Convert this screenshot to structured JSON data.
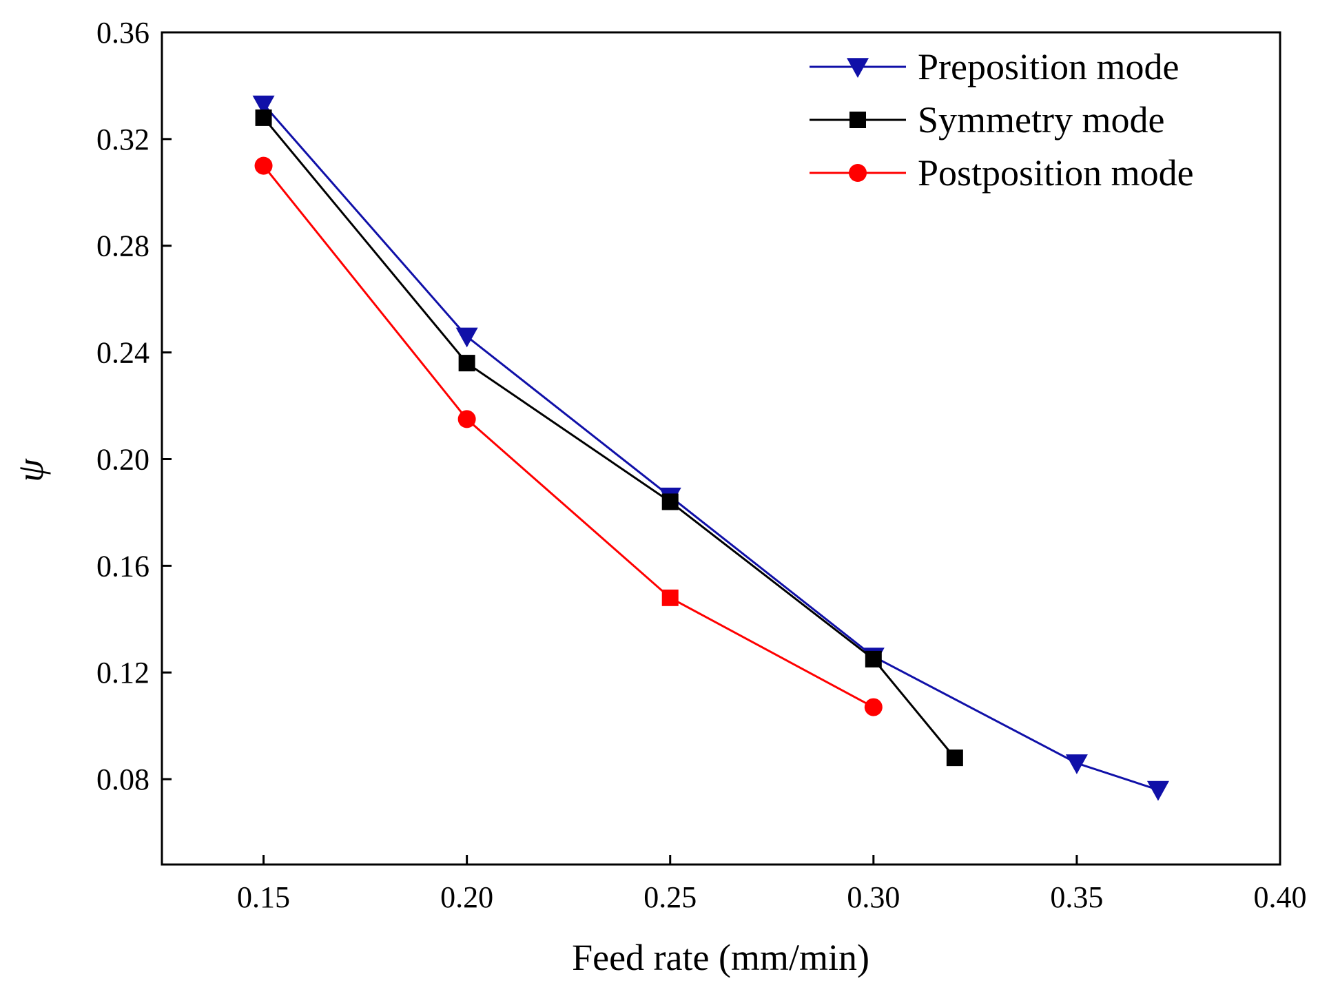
{
  "chart_data": {
    "type": "line",
    "title": "",
    "xlabel": "Feed rate (mm/min)",
    "ylabel": "ψ",
    "xlim": [
      0.125,
      0.4
    ],
    "ylim": [
      0.048,
      0.36
    ],
    "xticks": [
      "0.15",
      "0.20",
      "0.25",
      "0.30",
      "0.35",
      "0.40"
    ],
    "yticks": [
      "0.08",
      "0.12",
      "0.16",
      "0.20",
      "0.24",
      "0.28",
      "0.32",
      "0.36"
    ],
    "grid": false,
    "legend_position": "top-right",
    "series": [
      {
        "name": "Preposition mode",
        "color": "#1010a8",
        "marker": "triangle-down",
        "x": [
          0.15,
          0.2,
          0.25,
          0.3,
          0.35,
          0.37
        ],
        "y": [
          0.333,
          0.246,
          0.186,
          0.126,
          0.086,
          0.076
        ]
      },
      {
        "name": "Symmetry mode",
        "color": "#000000",
        "marker": "square",
        "x": [
          0.15,
          0.2,
          0.25,
          0.3,
          0.32
        ],
        "y": [
          0.328,
          0.236,
          0.184,
          0.125,
          0.088
        ]
      },
      {
        "name": "Postposition mode",
        "color": "#ff0000",
        "marker": "circle",
        "x": [
          0.15,
          0.2,
          0.25,
          0.3
        ],
        "y": [
          0.31,
          0.215,
          0.148,
          0.107
        ],
        "marker_overrides": [
          "circle",
          "circle",
          "square",
          "circle"
        ]
      }
    ]
  }
}
